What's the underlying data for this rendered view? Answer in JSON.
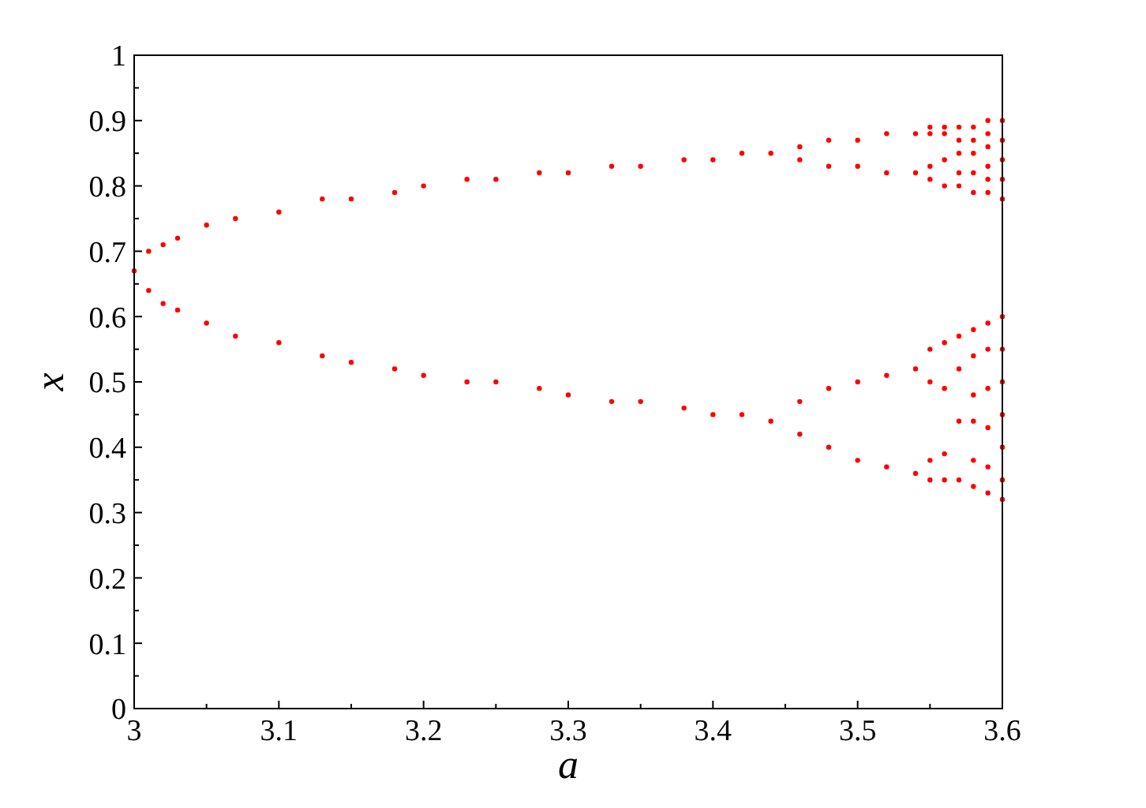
{
  "chart_data": {
    "type": "scatter",
    "xlabel": "a",
    "ylabel": "x",
    "xlim": [
      3,
      3.6
    ],
    "ylim": [
      0,
      1
    ],
    "xticks": [
      3,
      {
        "value": 3.05,
        "label": null
      },
      3.1,
      {
        "value": 3.15,
        "label": null
      },
      3.2,
      {
        "value": 3.25,
        "label": null
      },
      3.3,
      {
        "value": 3.35,
        "label": null
      },
      3.4,
      {
        "value": 3.45,
        "label": null
      },
      3.5,
      {
        "value": 3.55,
        "label": null
      },
      3.6
    ],
    "yticks": [
      0,
      {
        "value": 0.05,
        "label": null
      },
      0.1,
      {
        "value": 0.15,
        "label": null
      },
      0.2,
      {
        "value": 0.25,
        "label": null
      },
      0.3,
      {
        "value": 0.35,
        "label": null
      },
      0.4,
      {
        "value": 0.45,
        "label": null
      },
      0.5,
      {
        "value": 0.55,
        "label": null
      },
      0.6,
      {
        "value": 0.65,
        "label": null
      },
      0.7,
      {
        "value": 0.75,
        "label": null
      },
      0.8,
      {
        "value": 0.85,
        "label": null
      },
      0.9,
      {
        "value": 0.95,
        "label": null
      },
      1
    ],
    "grid": false,
    "marker": "circle",
    "series": [
      {
        "color": "#ff0000",
        "x": [
          3,
          3.01,
          3.02,
          3.03,
          3.05,
          3.07,
          3.1,
          3.13,
          3.15,
          3.18,
          3.2,
          3.23,
          3.25,
          3.28,
          3.3,
          3.33,
          3.35,
          3.38,
          3.4,
          3.42,
          3.44,
          3.01,
          3.02,
          3.03,
          3.05,
          3.07,
          3.1,
          3.13,
          3.15,
          3.18,
          3.2,
          3.23,
          3.25,
          3.28,
          3.3,
          3.33,
          3.35,
          3.38,
          3.4,
          3.42,
          3.44,
          3.46,
          3.46,
          3.46,
          3.46,
          3.48,
          3.48,
          3.48,
          3.48,
          3.5,
          3.5,
          3.5,
          3.5,
          3.52,
          3.52,
          3.52,
          3.52,
          3.54,
          3.54,
          3.54,
          3.54,
          3.55,
          3.55,
          3.55,
          3.55,
          3.55,
          3.55,
          3.55,
          3.55,
          3.56,
          3.56,
          3.56,
          3.56,
          3.56,
          3.56,
          3.56,
          3.56,
          3.57,
          3.57,
          3.57,
          3.57,
          3.57,
          3.57,
          3.57,
          3.57,
          3.57,
          3.58,
          3.58,
          3.58,
          3.58,
          3.58,
          3.58,
          3.58,
          3.58,
          3.58,
          3.58,
          3.58,
          3.59,
          3.59,
          3.59,
          3.59,
          3.59,
          3.59,
          3.59,
          3.59,
          3.59,
          3.59,
          3.59,
          3.59,
          3.6,
          3.6,
          3.6,
          3.6,
          3.6,
          3.6,
          3.6,
          3.6,
          3.6,
          3.6,
          3.6,
          3.6
        ],
        "values": [
          0.67,
          0.7,
          0.71,
          0.72,
          0.74,
          0.75,
          0.76,
          0.78,
          0.78,
          0.79,
          0.8,
          0.81,
          0.81,
          0.82,
          0.82,
          0.83,
          0.83,
          0.84,
          0.84,
          0.85,
          0.85,
          0.64,
          0.62,
          0.61,
          0.59,
          0.57,
          0.56,
          0.54,
          0.53,
          0.52,
          0.51,
          0.5,
          0.5,
          0.49,
          0.48,
          0.47,
          0.47,
          0.46,
          0.45,
          0.45,
          0.44,
          0.86,
          0.84,
          0.47,
          0.42,
          0.87,
          0.83,
          0.49,
          0.4,
          0.87,
          0.83,
          0.5,
          0.38,
          0.88,
          0.82,
          0.51,
          0.37,
          0.88,
          0.82,
          0.52,
          0.36,
          0.89,
          0.88,
          0.83,
          0.81,
          0.55,
          0.5,
          0.38,
          0.35,
          0.89,
          0.88,
          0.84,
          0.8,
          0.56,
          0.49,
          0.39,
          0.35,
          0.89,
          0.87,
          0.85,
          0.82,
          0.8,
          0.57,
          0.52,
          0.44,
          0.35,
          0.89,
          0.87,
          0.85,
          0.82,
          0.79,
          0.58,
          0.54,
          0.48,
          0.44,
          0.38,
          0.34,
          0.9,
          0.88,
          0.86,
          0.83,
          0.81,
          0.79,
          0.59,
          0.55,
          0.49,
          0.43,
          0.37,
          0.33,
          0.9,
          0.87,
          0.84,
          0.81,
          0.78,
          0.6,
          0.55,
          0.5,
          0.45,
          0.4,
          0.35,
          0.32
        ]
      }
    ]
  }
}
